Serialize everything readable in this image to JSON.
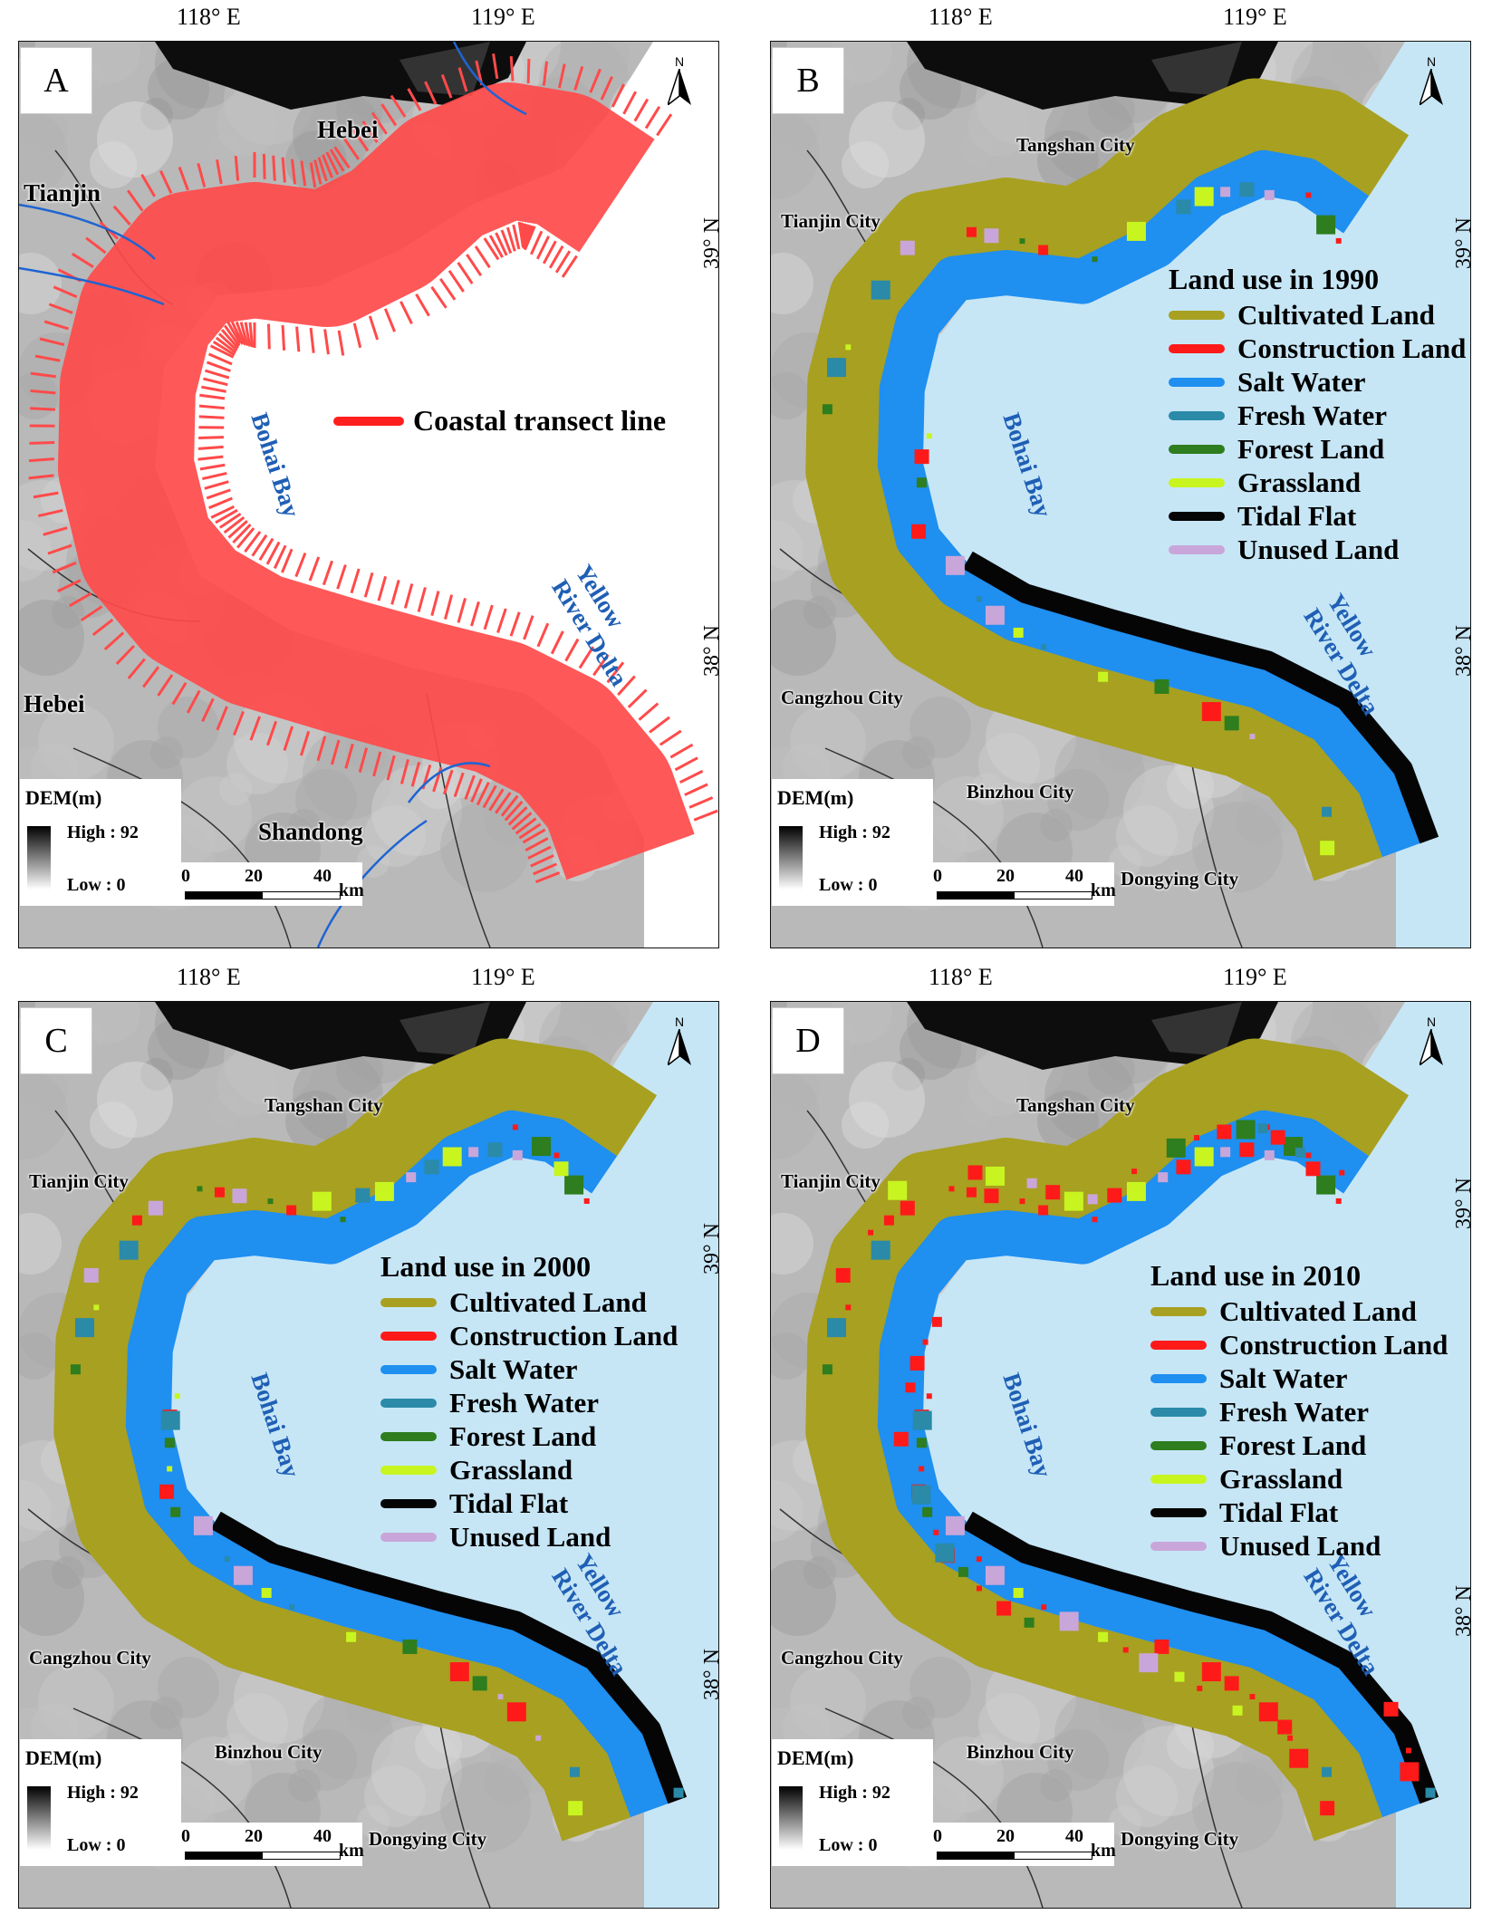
{
  "longitudes": [
    "118° E",
    "119° E"
  ],
  "latitudes": [
    "39° N",
    "38° N"
  ],
  "north_label": "N",
  "dem": {
    "title": "DEM(m)",
    "high": "High : 92",
    "low": "Low : 0"
  },
  "scalebar": {
    "ticks": [
      "0",
      "20",
      "40"
    ],
    "unit": "km"
  },
  "colors": {
    "cultivated": "#a8a020",
    "construction": "#ff1a1a",
    "salt_water": "#1f8ff0",
    "fresh_water": "#2a8aa8",
    "forest": "#2e7d1e",
    "grassland": "#c8f520",
    "tidal_flat": "#050505",
    "unused": "#c9a6d9",
    "sea": "#c6e6f6",
    "transect": "#ff4a4a"
  },
  "panel_a": {
    "letter": "A",
    "places": [
      "Hebei",
      "Tianjin",
      "Hebei",
      "Shandong"
    ],
    "water": [
      "Bohai Bay",
      "Yellow River Delta"
    ],
    "key_label": "Coastal transect line"
  },
  "panel_b": {
    "letter": "B",
    "places": [
      "Tangshan City",
      "Tianjin City",
      "Cangzhou City",
      "Binzhou City",
      "Dongying City"
    ],
    "water": [
      "Bohai Bay",
      "Yellow River Delta"
    ],
    "legend_title": "Land use in 1990"
  },
  "panel_c": {
    "letter": "C",
    "places": [
      "Tangshan City",
      "Tianjin City",
      "Cangzhou City",
      "Binzhou City",
      "Dongying City"
    ],
    "water": [
      "Bohai Bay",
      "Yellow River Delta"
    ],
    "legend_title": "Land use in 2000"
  },
  "panel_d": {
    "letter": "D",
    "places": [
      "Tangshan City",
      "Tianjin City",
      "Cangzhou City",
      "Binzhou City",
      "Dongying City"
    ],
    "water": [
      "Bohai Bay",
      "Yellow River Delta"
    ],
    "legend_title": "Land use in 2010"
  },
  "legend_items": [
    "Cultivated Land",
    "Construction Land",
    "Salt Water",
    "Fresh Water",
    "Forest Land",
    "Grassland",
    "Tidal Flat",
    "Unused Land"
  ],
  "legend_keys": [
    "cultivated",
    "construction",
    "salt_water",
    "fresh_water",
    "forest",
    "grassland",
    "tidal_flat",
    "unused"
  ]
}
